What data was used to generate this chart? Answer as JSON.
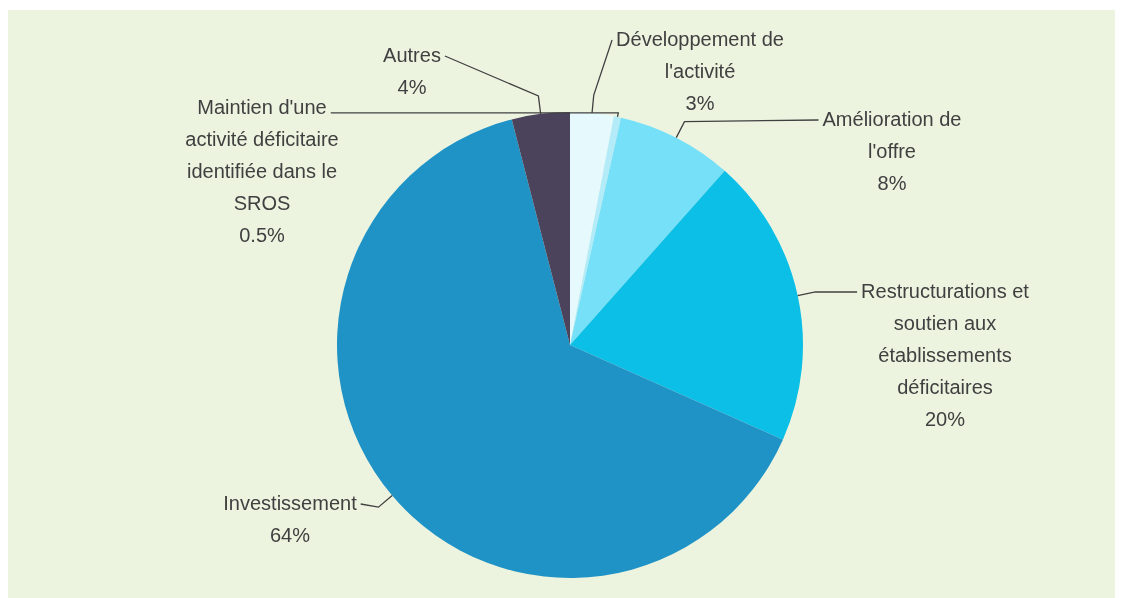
{
  "chart_data": {
    "type": "pie",
    "categories": [
      "Développement de l'activité",
      "Maintien d'une activité déficitaire identifiée dans le SROS",
      "Amélioration de l'offre",
      "Restructurations et soutien aux établissements déficitaires",
      "Investissement",
      "Autres"
    ],
    "values": [
      3,
      0.5,
      8,
      20,
      64,
      4
    ],
    "colors": [
      "#e6f9fd",
      "#b3ecf8",
      "#75e0f7",
      "#0bbfe6",
      "#2093c6",
      "#4b435b"
    ],
    "value_labels": [
      "3%",
      "0.5%",
      "8%",
      "20%",
      "64%",
      "4%"
    ],
    "legend": false
  }
}
